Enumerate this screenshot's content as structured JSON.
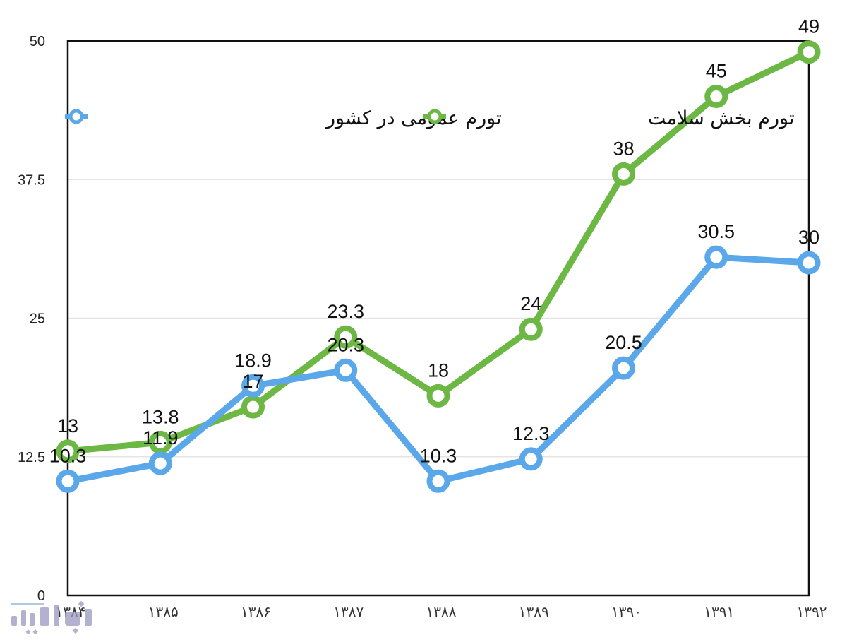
{
  "chart_data": {
    "type": "line",
    "title": "",
    "xlabel": "",
    "ylabel": "",
    "ylim": [
      0,
      50
    ],
    "yticks": [
      "0",
      "12.5",
      "25",
      "37.5",
      "50"
    ],
    "grid": true,
    "legend_position": "top",
    "categories": [
      "۱۳۸۴",
      "۱۳۸۵",
      "۱۳۸۶",
      "۱۳۸۷",
      "۱۳۸۸",
      "۱۳۸۹",
      "۱۳۹۰",
      "۱۳۹۱",
      "۱۳۹۲"
    ],
    "series": [
      {
        "name": "تورم عمومی در کشور",
        "color": "#5aa8ea",
        "values": [
          10.3,
          11.9,
          18.9,
          20.3,
          10.3,
          12.3,
          20.5,
          30.5,
          30
        ],
        "labels": [
          "10.3",
          "11.9",
          "18.9",
          "20.3",
          "10.3",
          "12.3",
          "20.5",
          "30.5",
          "30"
        ]
      },
      {
        "name": "تورم بخش سلامت",
        "color": "#6db845",
        "values": [
          13,
          13.8,
          17,
          23.3,
          18,
          24,
          38,
          45,
          49
        ],
        "labels": [
          "13",
          "13.8",
          "17",
          "23.3",
          "18",
          "24",
          "38",
          "45",
          "49"
        ]
      }
    ]
  },
  "legend": {
    "general": "تورم عمومی در کشور",
    "health": "تورم بخش سلامت"
  },
  "colors": {
    "general": "#5aa8ea",
    "health": "#6db845",
    "axis": "#111111",
    "grid": "#e4e4e4"
  },
  "watermark": {
    "icon": "news-agency-logo"
  }
}
